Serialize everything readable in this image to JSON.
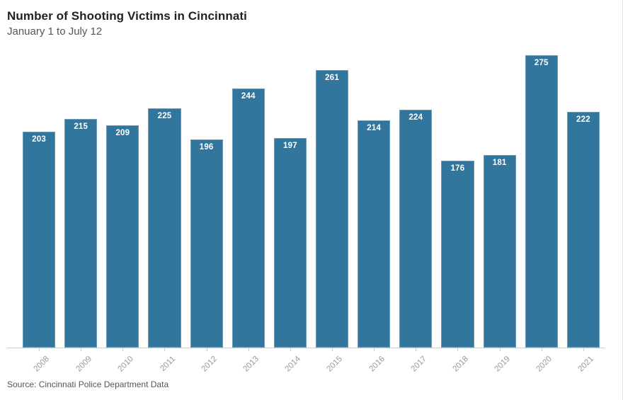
{
  "header": {
    "title": "Number of Shooting Victims in Cincinnati",
    "subtitle": "January 1 to July 12"
  },
  "footer": {
    "source": "Source: Cincinnati Police Department Data"
  },
  "colors": {
    "bar": "#33769D",
    "bar_label": "#FFFFFF",
    "title": "#222222",
    "subtitle": "#555555",
    "axis_line": "#CCCCCC",
    "tick_label": "#999999",
    "source": "#555555"
  },
  "chart_data": {
    "type": "bar",
    "title": "Number of Shooting Victims in Cincinnati",
    "subtitle": "January 1 to July 12",
    "categories": [
      "2008",
      "2009",
      "2010",
      "2011",
      "2012",
      "2013",
      "2014",
      "2015",
      "2016",
      "2017",
      "2018",
      "2019",
      "2020",
      "2021"
    ],
    "values": [
      203,
      215,
      209,
      225,
      196,
      244,
      197,
      261,
      214,
      224,
      176,
      181,
      275,
      222
    ],
    "xlabel": "",
    "ylabel": "",
    "ylim": [
      0,
      275
    ],
    "grid": false,
    "legend": false,
    "bar_label_position": "inside-top",
    "x_tick_rotation": -45,
    "source_note": "Source: Cincinnati Police Department Data"
  }
}
